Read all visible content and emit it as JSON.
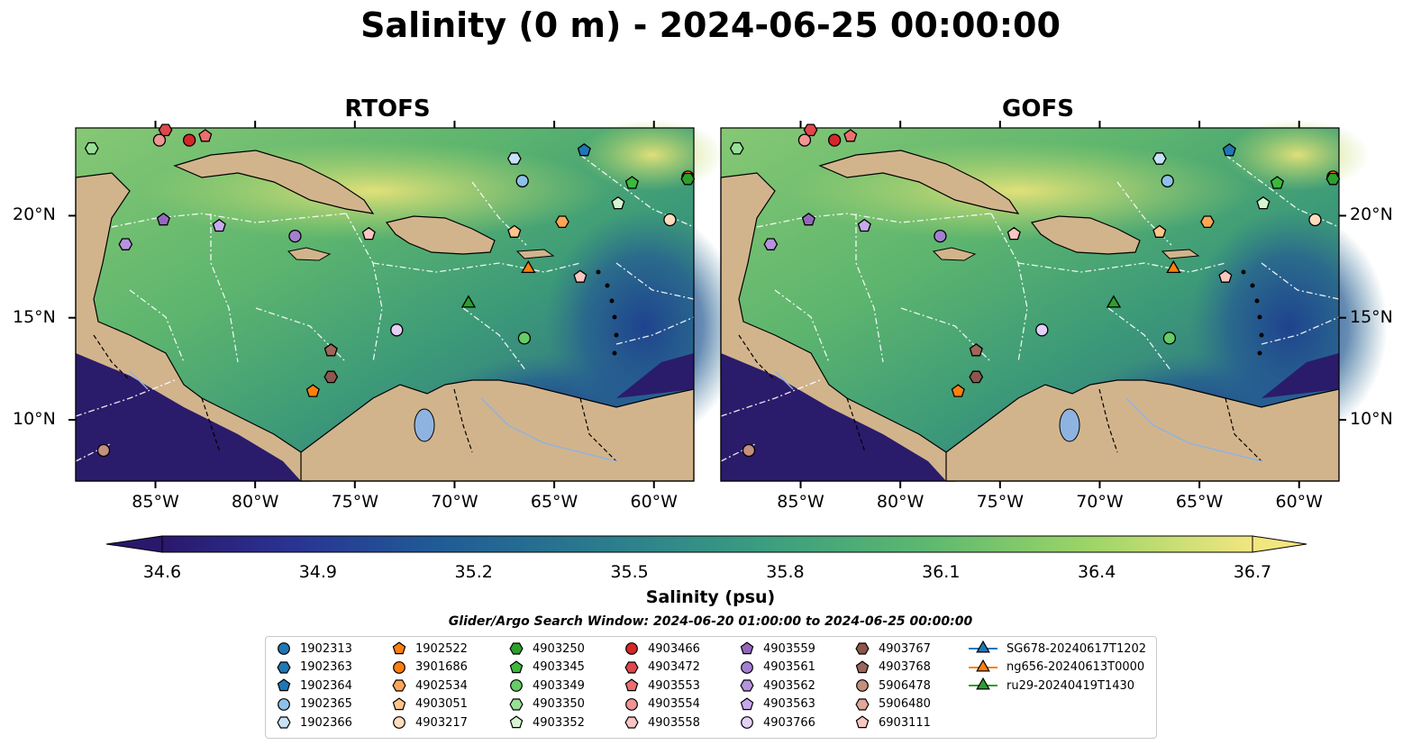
{
  "title": "Salinity (0 m) - 2024-06-25 00:00:00",
  "panels": [
    "RTOFS",
    "GOFS"
  ],
  "map": {
    "lon_range": [
      -89,
      -58
    ],
    "lat_range": [
      7,
      24.3
    ],
    "x_ticks": [
      "85°W",
      "80°W",
      "75°W",
      "70°W",
      "65°W",
      "60°W"
    ],
    "y_ticks": [
      "20°N",
      "15°N",
      "10°N"
    ],
    "land_color": "#d2b48c",
    "eez_line_color": "#ffffff"
  },
  "colorbar": {
    "label": "Salinity (psu)",
    "ticks": [
      "34.6",
      "34.9",
      "35.2",
      "35.5",
      "35.8",
      "36.1",
      "36.4",
      "36.7"
    ],
    "range": [
      34.6,
      36.7
    ],
    "colormap": "haline",
    "extend": "both"
  },
  "search_window": "Glider/Argo Search Window: 2024-06-20 01:00:00 to 2024-06-25 00:00:00",
  "chart_data": {
    "type": "scatter",
    "title": "Salinity (0 m) - 2024-06-25 00:00:00",
    "xlabel": "",
    "ylabel": "",
    "xlim": [
      -89,
      -58
    ],
    "ylim": [
      7,
      24.3
    ],
    "grid": false,
    "legend_position": "bottom",
    "series": [
      {
        "name": "1902313",
        "marker": "circle",
        "color": "#1f77b4",
        "x": [],
        "y": []
      },
      {
        "name": "1902363",
        "marker": "hexagon",
        "color": "#1f77b4",
        "x": [],
        "y": []
      },
      {
        "name": "1902364",
        "marker": "pentagon",
        "color": "#1f77b4",
        "x": [
          -63.5
        ],
        "y": [
          23.2
        ]
      },
      {
        "name": "1902365",
        "marker": "circle",
        "color": "#8ec1e8",
        "x": [
          -66.6
        ],
        "y": [
          21.7
        ]
      },
      {
        "name": "1902366",
        "marker": "hexagon",
        "color": "#c6e2f7",
        "x": [
          -67
        ],
        "y": [
          22.8
        ]
      },
      {
        "name": "1902522",
        "marker": "pentagon",
        "color": "#ff7f0e",
        "x": [
          -77.1
        ],
        "y": [
          11.4
        ]
      },
      {
        "name": "3901686",
        "marker": "circle",
        "color": "#ff7f0e",
        "x": [
          -58.3
        ],
        "y": [
          21.9
        ]
      },
      {
        "name": "4902534",
        "marker": "hexagon",
        "color": "#ffa555",
        "x": [
          -64.6
        ],
        "y": [
          19.7
        ]
      },
      {
        "name": "4903051",
        "marker": "pentagon",
        "color": "#ffc48a",
        "x": [
          -67
        ],
        "y": [
          19.2
        ]
      },
      {
        "name": "4903217",
        "marker": "circle",
        "color": "#ffdcbc",
        "x": [
          -59.2
        ],
        "y": [
          19.8
        ]
      },
      {
        "name": "4903250",
        "marker": "hexagon",
        "color": "#2ca02c",
        "x": [
          -58.3
        ],
        "y": [
          21.8
        ]
      },
      {
        "name": "4903345",
        "marker": "pentagon",
        "color": "#3cb83c",
        "x": [
          -61.1
        ],
        "y": [
          21.6
        ],
        "label": "4903345"
      },
      {
        "name": "4903349",
        "marker": "circle",
        "color": "#66cc66",
        "x": [
          -66.5
        ],
        "y": [
          14
        ]
      },
      {
        "name": "4903350",
        "marker": "hexagon",
        "color": "#98e098",
        "x": [
          -88.2
        ],
        "y": [
          23.3
        ]
      },
      {
        "name": "4903352",
        "marker": "pentagon",
        "color": "#d5f5d0",
        "x": [
          -61.8
        ],
        "y": [
          20.6
        ]
      },
      {
        "name": "4903466",
        "marker": "circle",
        "color": "#d62728",
        "x": [
          -83.3
        ],
        "y": [
          23.7
        ]
      },
      {
        "name": "4903472",
        "marker": "hexagon",
        "color": "#e0474a",
        "x": [
          -84.5
        ],
        "y": [
          24.2
        ]
      },
      {
        "name": "4903553",
        "marker": "pentagon",
        "color": "#ec6f6f",
        "x": [
          -82.5
        ],
        "y": [
          23.9
        ]
      },
      {
        "name": "4903554",
        "marker": "circle",
        "color": "#f19494",
        "x": [
          -84.8
        ],
        "y": [
          23.7
        ]
      },
      {
        "name": "4903558",
        "marker": "hexagon",
        "color": "#f8c4c4",
        "x": [],
        "y": []
      },
      {
        "name": "4903559",
        "marker": "pentagon",
        "color": "#9467bd",
        "x": [
          -84.6
        ],
        "y": [
          19.8
        ]
      },
      {
        "name": "4903561",
        "marker": "circle",
        "color": "#a47fd0",
        "x": [
          -78
        ],
        "y": [
          19
        ]
      },
      {
        "name": "4903562",
        "marker": "hexagon",
        "color": "#b693de",
        "x": [
          -86.5
        ],
        "y": [
          18.6
        ]
      },
      {
        "name": "4903563",
        "marker": "pentagon",
        "color": "#c8a8ec",
        "x": [
          -81.8
        ],
        "y": [
          19.5
        ]
      },
      {
        "name": "4903766",
        "marker": "circle",
        "color": "#e3d0f7",
        "x": [
          -72.9
        ],
        "y": [
          14.4
        ]
      },
      {
        "name": "4903767",
        "marker": "hexagon",
        "color": "#8c564b",
        "x": [
          -76.2
        ],
        "y": [
          12.1
        ]
      },
      {
        "name": "4903768",
        "marker": "pentagon",
        "color": "#9c6658",
        "x": [
          -76.2
        ],
        "y": [
          13.4
        ]
      },
      {
        "name": "5906478",
        "marker": "circle",
        "color": "#c48f7f",
        "x": [
          -87.6
        ],
        "y": [
          8.5
        ]
      },
      {
        "name": "5906480",
        "marker": "hexagon",
        "color": "#e0a898",
        "x": [],
        "y": []
      },
      {
        "name": "6903111",
        "marker": "pentagon",
        "color": "#f8c7c0",
        "x": [
          -74.3,
          -63.7
        ],
        "y": [
          19.1,
          17
        ]
      },
      {
        "name": "SG678-20240617T1202",
        "marker": "triangle",
        "color": "#1f77b4",
        "x": [],
        "y": []
      },
      {
        "name": "ng656-20240613T0000",
        "marker": "triangle",
        "color": "#ff7f0e",
        "x": [
          -66.3
        ],
        "y": [
          17.4
        ]
      },
      {
        "name": "ru29-20240419T1430",
        "marker": "triangle",
        "color": "#2ca02c",
        "x": [
          -69.3
        ],
        "y": [
          15.7
        ]
      }
    ]
  }
}
